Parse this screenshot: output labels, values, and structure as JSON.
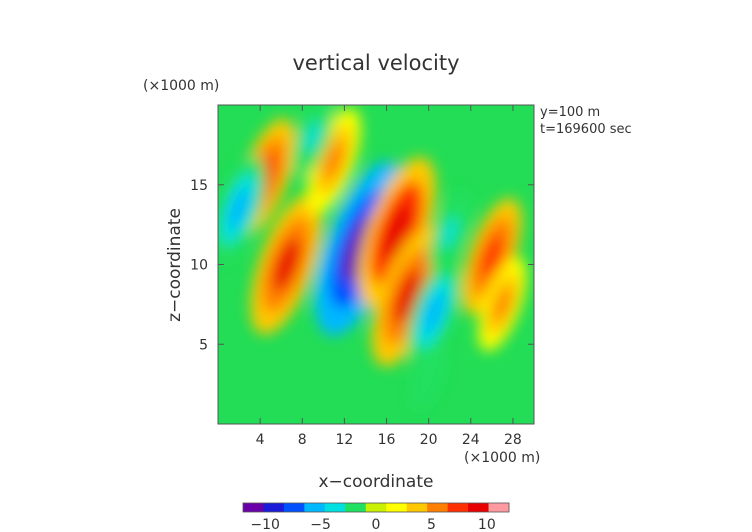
{
  "chart_data": {
    "type": "heatmap",
    "title": "vertical velocity",
    "xlabel": "x−coordinate",
    "ylabel": "z−coordinate",
    "x_unit": "(×1000 m)",
    "z_unit": "(×1000 m)",
    "xlim": [
      0,
      30
    ],
    "ylim": [
      0,
      20
    ],
    "xticks": [
      "4",
      "8",
      "12",
      "16",
      "20",
      "24",
      "28"
    ],
    "yticks": [
      "5",
      "10",
      "15"
    ],
    "annotations": [
      "y=100 m",
      "t=169600 sec"
    ],
    "colorbar": {
      "range": [
        -12,
        12
      ],
      "tick_labels": [
        "−10",
        "−5",
        "0",
        "5",
        "10"
      ],
      "colors": [
        "#6a00a8",
        "#1a1ad8",
        "#0050ff",
        "#00b8ff",
        "#00e0e0",
        "#20e060",
        "#c8f000",
        "#ffff00",
        "#ffc800",
        "#ff8000",
        "#ff3000",
        "#e80000",
        "#ff9aa0"
      ]
    },
    "field_features": [
      {
        "kind": "updraft",
        "x": 6.5,
        "z": 10,
        "value": 9
      },
      {
        "kind": "updraft",
        "x": 4.5,
        "z": 15.5,
        "value": 7
      },
      {
        "kind": "downdraft",
        "x": 12.5,
        "z": 10.5,
        "value": -9
      },
      {
        "kind": "downdraft",
        "x": 13.5,
        "z": 11,
        "value": -12
      },
      {
        "kind": "updraft",
        "x": 17,
        "z": 12,
        "value": 10
      },
      {
        "kind": "updraft",
        "x": 18,
        "z": 8,
        "value": 9
      },
      {
        "kind": "downdraft",
        "x": 2,
        "z": 13.5,
        "value": -6
      },
      {
        "kind": "downdraft",
        "x": 22,
        "z": 12,
        "value": -4
      },
      {
        "kind": "updraft",
        "x": 26,
        "z": 10.5,
        "value": 7
      },
      {
        "kind": "updraft",
        "x": 27,
        "z": 7.5,
        "value": 5
      },
      {
        "kind": "downdraft",
        "x": 20.5,
        "z": 7,
        "value": -6
      },
      {
        "kind": "downdraft",
        "x": 20,
        "z": 3,
        "value": -2.5
      },
      {
        "kind": "updraft",
        "x": 11,
        "z": 16.5,
        "value": 6
      },
      {
        "kind": "downdraft",
        "x": 9,
        "z": 18,
        "value": -4
      }
    ]
  }
}
